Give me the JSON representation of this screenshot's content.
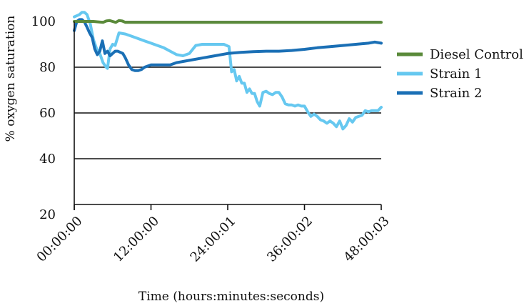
{
  "chart_data": {
    "type": "line",
    "title": "",
    "xlabel": "Time (hours:minutes:seconds)",
    "ylabel": "% oxygen saturation",
    "xlim": [
      0,
      48
    ],
    "ylim": [
      20,
      100
    ],
    "x_ticks": [
      0,
      12,
      24,
      36,
      48
    ],
    "x_tick_labels": [
      "00:00:00",
      "12:00:00",
      "24:00:01",
      "36:00:02",
      "48:00:03"
    ],
    "y_ticks": [
      20,
      40,
      60,
      80,
      100
    ],
    "y_tick_labels": [
      "20",
      "40",
      "60",
      "80",
      "100"
    ],
    "grid": "horizontal",
    "legend_position": "right",
    "series": [
      {
        "name": "Diesel Control",
        "color": "#5a8a3a",
        "x": [
          0,
          1,
          2,
          3,
          4.5,
          5,
          5.5,
          6,
          6.5,
          7,
          7.5,
          8,
          9,
          12,
          20,
          30,
          40,
          48
        ],
        "y": [
          100,
          100,
          100,
          100,
          99.6,
          100.2,
          100.4,
          100,
          99.6,
          100.4,
          100.2,
          99.6,
          99.6,
          99.6,
          99.6,
          99.6,
          99.6,
          99.6
        ]
      },
      {
        "name": "Strain 1",
        "color": "#66c8f0",
        "x": [
          0,
          0.8,
          1.2,
          1.6,
          2,
          2.5,
          3,
          3.5,
          4,
          4.5,
          5,
          5.2,
          5.6,
          6,
          6.4,
          7,
          8,
          9,
          10,
          11,
          12,
          13,
          14,
          15,
          16,
          17,
          18,
          19,
          20,
          21,
          22,
          23,
          23.4,
          23.8,
          24.2,
          24.6,
          25,
          25.4,
          25.8,
          26.2,
          26.6,
          27,
          27.4,
          27.8,
          28.2,
          28.6,
          29,
          29.5,
          30,
          30.5,
          31,
          31.5,
          32,
          32.5,
          33,
          33.5,
          34,
          34.5,
          35,
          35.5,
          36,
          36.5,
          37,
          37.5,
          38,
          38.5,
          39,
          39.5,
          40,
          40.5,
          41,
          41.5,
          42,
          42.5,
          43,
          43.5,
          44,
          44.5,
          45,
          45.5,
          46,
          46.5,
          47,
          47.5,
          48
        ],
        "y": [
          102,
          103,
          104,
          104,
          103,
          99,
          92,
          88,
          86,
          82,
          80,
          79.5,
          88,
          90,
          89.5,
          95,
          94.5,
          93.5,
          92.5,
          91.5,
          90.5,
          89.5,
          88.5,
          87,
          85.5,
          85,
          86,
          89.5,
          90,
          90,
          90,
          90,
          90,
          89.5,
          89,
          78,
          79,
          74,
          76,
          73,
          73,
          69,
          70.5,
          68.5,
          68.5,
          65,
          63,
          69,
          69.5,
          68.5,
          68,
          69,
          69,
          67,
          64,
          63.5,
          63.5,
          63,
          63.5,
          63,
          63,
          60.5,
          58.5,
          59.5,
          58.5,
          57,
          56.5,
          55.5,
          56.5,
          55.5,
          54,
          56.5,
          53,
          54.5,
          57.5,
          56,
          58,
          58.5,
          59,
          61,
          60.5,
          61,
          61,
          61,
          62.5
        ]
      },
      {
        "name": "Strain 2",
        "color": "#1a6fb5",
        "x": [
          0,
          0.4,
          0.8,
          1.2,
          1.6,
          2,
          2.4,
          2.8,
          3.2,
          3.6,
          4,
          4.4,
          4.8,
          5.2,
          5.6,
          6,
          6.4,
          6.8,
          7.2,
          7.6,
          8,
          8.5,
          9,
          9.5,
          10,
          10.5,
          11,
          12,
          13,
          14,
          15,
          16,
          17,
          18,
          20,
          22,
          24,
          26,
          28,
          30,
          32,
          34,
          36,
          38,
          40,
          42,
          44,
          46,
          47,
          48
        ],
        "y": [
          96,
          100,
          100.8,
          100.8,
          99.8,
          97.5,
          95,
          93,
          88,
          85.5,
          87,
          91.5,
          86,
          87,
          85,
          86,
          87,
          87,
          86.5,
          86,
          84,
          81,
          79,
          78.5,
          78.5,
          79,
          80,
          81,
          81,
          81,
          81,
          82,
          82.5,
          83,
          84,
          85,
          86,
          86.5,
          86.8,
          87,
          87,
          87.3,
          87.8,
          88.5,
          89,
          89.5,
          90,
          90.5,
          91,
          90.5
        ]
      }
    ]
  }
}
